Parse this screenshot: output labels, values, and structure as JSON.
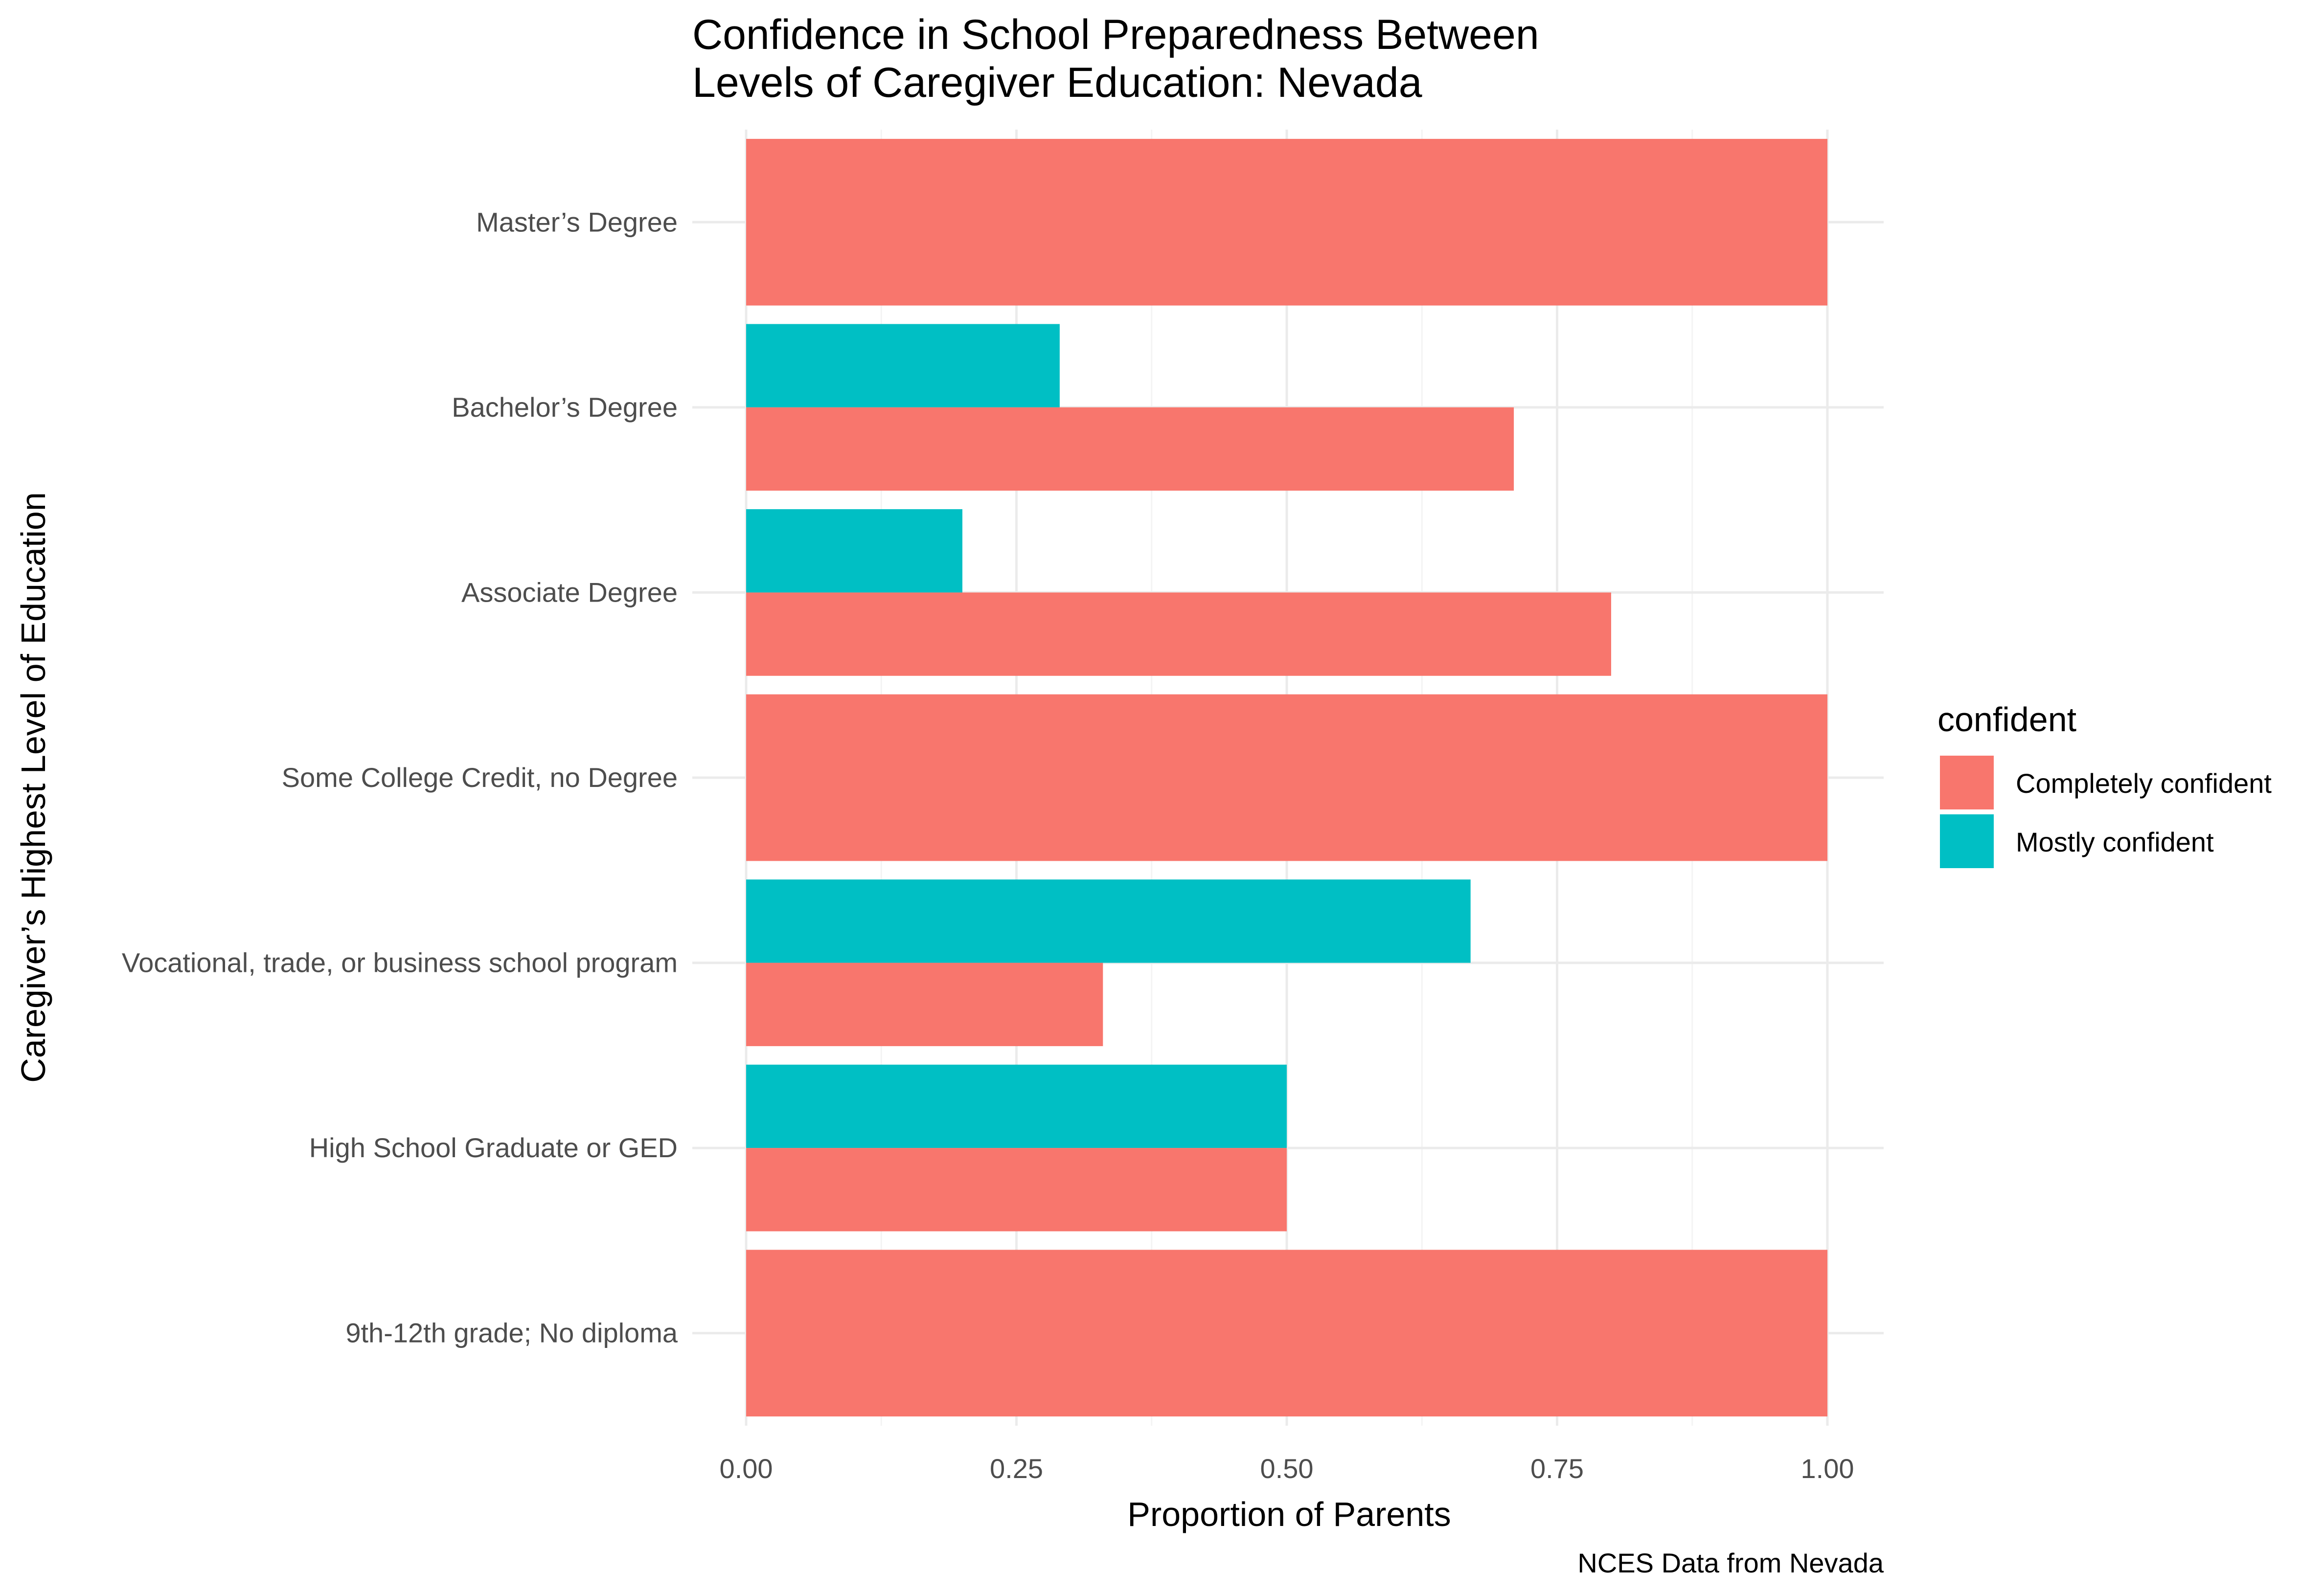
{
  "chart_data": {
    "type": "bar",
    "orientation": "horizontal",
    "title": "Confidence in School Preparedness Between\nLevels of Caregiver Education: Nevada",
    "xlabel": "Proportion of Parents",
    "ylabel": "Caregiver’s Highest Level of Education",
    "caption": "NCES Data from Nevada",
    "xlim": [
      0,
      1.05
    ],
    "x_ticks": [
      "0.00",
      "0.25",
      "0.50",
      "0.75",
      "1.00"
    ],
    "x_tick_values": [
      0,
      0.25,
      0.5,
      0.75,
      1.0
    ],
    "grid": true,
    "categories": [
      "Master’s Degree",
      "Bachelor’s Degree",
      "Associate Degree",
      "Some College Credit, no Degree",
      "Vocational, trade, or business school program",
      "High School Graduate or GED",
      "9th-12th grade; No diploma"
    ],
    "legend": {
      "title": "confident",
      "placement": "right"
    },
    "series": [
      {
        "name": "Completely confident",
        "color": "#F8766D",
        "values": [
          1.0,
          0.71,
          0.8,
          1.0,
          0.33,
          0.5,
          1.0
        ]
      },
      {
        "name": "Mostly confident",
        "color": "#00BFC4",
        "values": [
          null,
          0.29,
          0.2,
          null,
          0.67,
          0.5,
          null
        ]
      }
    ]
  }
}
